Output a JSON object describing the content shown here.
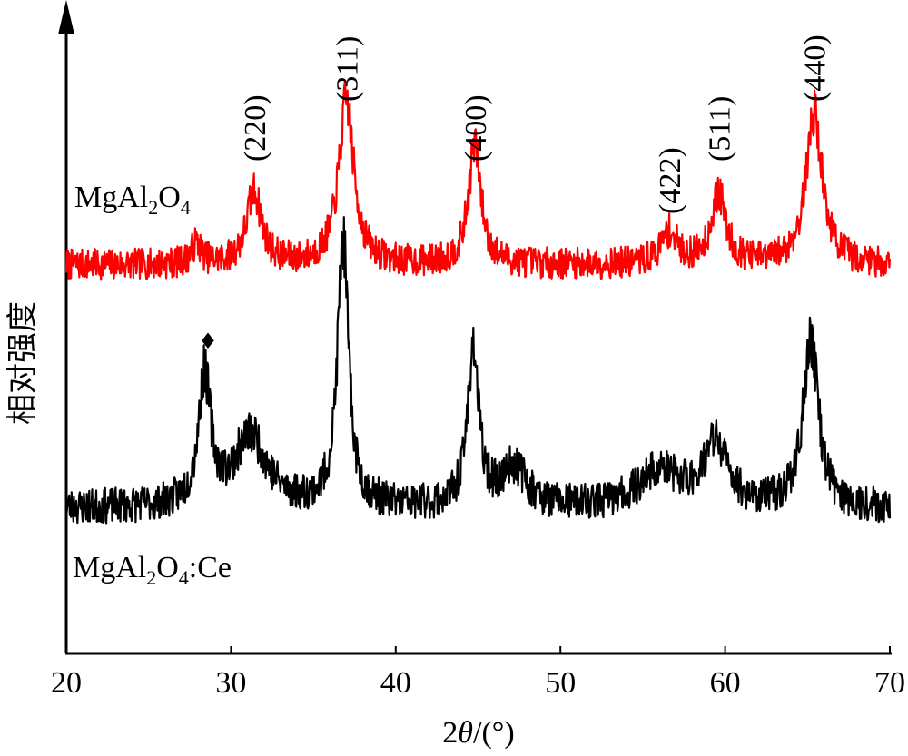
{
  "chart_data": {
    "type": "line",
    "title": "",
    "xlabel_parts": {
      "pre": "2",
      "var": "θ",
      "post": "/(°)"
    },
    "ylabel": "相对强度",
    "xlim": [
      20,
      70
    ],
    "x_ticks": [
      20,
      30,
      40,
      50,
      60,
      70
    ],
    "x_tick_labels": [
      "20",
      "30",
      "40",
      "50",
      "60",
      "70"
    ],
    "grid": false,
    "legend": "none",
    "series": [
      {
        "name": "MgAl2O4",
        "label_parts": {
          "base": "MgAl",
          "sub1": "2",
          "mid": "O",
          "sub2": "4",
          "suffix": ""
        },
        "color": "#ff0000",
        "baseline": 0.3,
        "noise": 0.09,
        "seed": 7,
        "peaks": [
          {
            "x": 27.9,
            "h": 0.12,
            "w": 0.35
          },
          {
            "x": 31.4,
            "h": 0.42,
            "w": 0.55
          },
          {
            "x": 37.0,
            "h": 0.95,
            "w": 0.55
          },
          {
            "x": 44.8,
            "h": 0.7,
            "w": 0.45
          },
          {
            "x": 56.6,
            "h": 0.18,
            "w": 0.6
          },
          {
            "x": 59.6,
            "h": 0.4,
            "w": 0.55
          },
          {
            "x": 65.4,
            "h": 0.88,
            "w": 0.6
          }
        ]
      },
      {
        "name": "MgAl2O4:Ce",
        "label_parts": {
          "base": "MgAl",
          "sub1": "2",
          "mid": "O",
          "sub2": "4",
          "suffix": ":Ce"
        },
        "color": "#000000",
        "baseline": 0.28,
        "noise": 0.1,
        "seed": 23,
        "peaks": [
          {
            "x": 28.4,
            "h": 0.72,
            "w": 0.45
          },
          {
            "x": 31.2,
            "h": 0.4,
            "w": 1.2
          },
          {
            "x": 36.8,
            "h": 1.5,
            "w": 0.4
          },
          {
            "x": 44.7,
            "h": 0.9,
            "w": 0.4
          },
          {
            "x": 47.2,
            "h": 0.22,
            "w": 0.9
          },
          {
            "x": 56.0,
            "h": 0.2,
            "w": 1.5
          },
          {
            "x": 59.4,
            "h": 0.35,
            "w": 0.9
          },
          {
            "x": 65.2,
            "h": 0.95,
            "w": 0.55
          }
        ]
      }
    ],
    "annotations": [
      {
        "text": "(220)",
        "x": 31.4
      },
      {
        "text": "(311)",
        "x": 37.0
      },
      {
        "text": "(400)",
        "x": 44.8
      },
      {
        "text": "(422)",
        "x": 56.6
      },
      {
        "text": "(511)",
        "x": 59.6
      },
      {
        "text": "(440)",
        "x": 65.4
      }
    ],
    "markers": [
      {
        "symbol": "♦",
        "x": 28.6,
        "series": "MgAl2O4:Ce"
      }
    ]
  }
}
